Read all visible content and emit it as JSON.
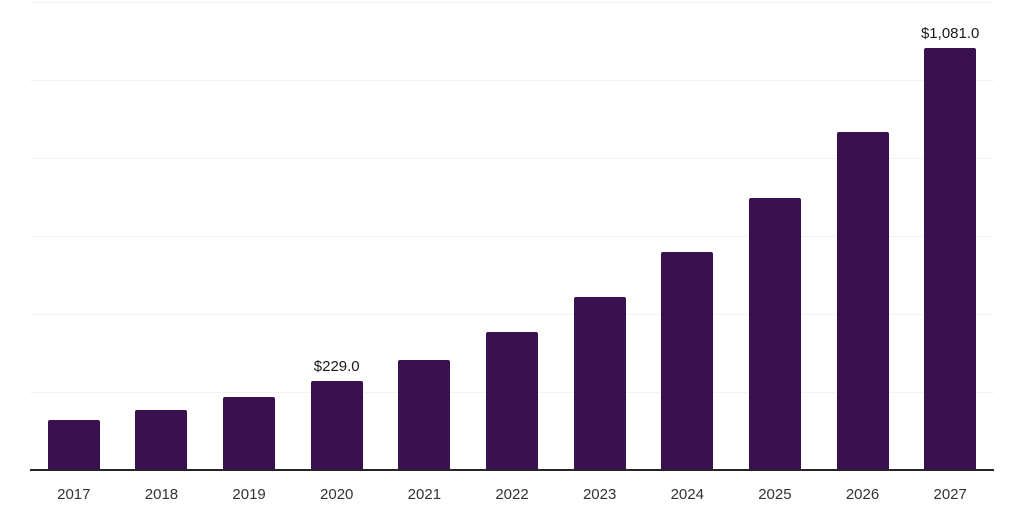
{
  "chart_data": {
    "type": "bar",
    "title": "",
    "xlabel": "",
    "ylabel": "",
    "categories": [
      "2017",
      "2018",
      "2019",
      "2020",
      "2021",
      "2022",
      "2023",
      "2024",
      "2025",
      "2026",
      "2027"
    ],
    "values": [
      128,
      154,
      187,
      229,
      283,
      354,
      444,
      559,
      697,
      867,
      1081
    ],
    "data_labels": [
      "",
      "",
      "",
      "$229.0",
      "",
      "",
      "",
      "",
      "",
      "",
      "$1,081.0"
    ],
    "ylim": [
      0,
      1200
    ],
    "gridline_values": [
      200,
      400,
      600,
      800,
      1000,
      1200
    ],
    "grid": true,
    "legend": false,
    "y_axis_tick_labels_visible": false,
    "colors": {
      "bar": "#39114F",
      "gridline": "#F2F2F2",
      "axis_line": "#262626",
      "x_tick_label": "#333333",
      "data_label": "#1A1A1A",
      "background": "#FFFFFF"
    }
  }
}
